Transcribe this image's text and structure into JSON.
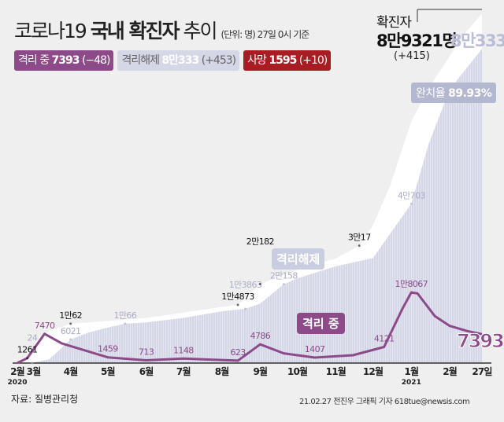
{
  "header": {
    "title_prefix": "코로나19",
    "title_bold": "국내 확진자",
    "title_suffix": "추이",
    "unit_note": "(단위: 명) 27일 0시 기준"
  },
  "badges": {
    "isolation": {
      "label": "격리 중",
      "value": "7393",
      "delta": "(−48)"
    },
    "released": {
      "label": "격리해제",
      "value": "8만333",
      "delta": "(+453)"
    },
    "deaths": {
      "label": "사망",
      "value": "1595",
      "delta": "(+10)"
    }
  },
  "summary": {
    "confirmed_label": "확진자",
    "confirmed_value": "8만9321명",
    "confirmed_delta": "(+415)",
    "released_total": "8만333",
    "recovery_rate_label": "완치율",
    "recovery_rate_value": "89.93%"
  },
  "tags": {
    "released": "격리해제",
    "isolation": "격리 중",
    "isolation_end": "7393"
  },
  "footer": {
    "source": "자료: 질병관리청",
    "credit": "21.02.27 전진우 그래픽 기자 618tue@newsis.com"
  },
  "colors": {
    "isolation": "#8c4a88",
    "released": "#d5d7e6",
    "confirmed": "#ffffff",
    "deaths": "#a81c24",
    "background": "#efefef"
  },
  "chart_data": {
    "type": "area",
    "ylim": [
      0,
      90000
    ],
    "grid": false,
    "x_ticks": [
      {
        "date": "2020-02-18",
        "label": "2월"
      },
      {
        "date": "2020-03-01",
        "label": "3월"
      },
      {
        "date": "2020-04-01",
        "label": "4월"
      },
      {
        "date": "2020-05-01",
        "label": "5월"
      },
      {
        "date": "2020-06-01",
        "label": "6월"
      },
      {
        "date": "2020-07-01",
        "label": "7월"
      },
      {
        "date": "2020-08-01",
        "label": "8월"
      },
      {
        "date": "2020-09-01",
        "label": "9월"
      },
      {
        "date": "2020-10-01",
        "label": "10월"
      },
      {
        "date": "2020-11-01",
        "label": "11월"
      },
      {
        "date": "2020-12-01",
        "label": "12월"
      },
      {
        "date": "2021-01-01",
        "label": "1월"
      },
      {
        "date": "2021-02-01",
        "label": "2월"
      },
      {
        "date": "2021-02-27",
        "label": "27일"
      }
    ],
    "year_labels": [
      {
        "date": "2020-02-18",
        "label": "2020"
      },
      {
        "date": "2021-01-01",
        "label": "2021"
      }
    ],
    "series": [
      {
        "key": "confirmed",
        "points": [
          [
            "2020-02-18",
            31
          ],
          [
            "2020-02-26",
            1261
          ],
          [
            "2020-03-05",
            6000
          ],
          [
            "2020-03-15",
            8162
          ],
          [
            "2020-04-01",
            10062
          ],
          [
            "2020-05-01",
            10774
          ],
          [
            "2020-06-01",
            11541
          ],
          [
            "2020-07-01",
            12904
          ],
          [
            "2020-08-01",
            14336
          ],
          [
            "2020-08-14",
            14873
          ],
          [
            "2020-09-01",
            20182
          ],
          [
            "2020-10-01",
            23889
          ],
          [
            "2020-11-01",
            26732
          ],
          [
            "2020-11-20",
            30017
          ],
          [
            "2020-12-01",
            35163
          ],
          [
            "2020-12-15",
            45442
          ],
          [
            "2021-01-01",
            61769
          ],
          [
            "2021-01-15",
            70212
          ],
          [
            "2021-02-01",
            78508
          ],
          [
            "2021-02-15",
            84946
          ],
          [
            "2021-02-27",
            89321
          ]
        ]
      },
      {
        "key": "released",
        "points": [
          [
            "2020-02-18",
            12
          ],
          [
            "2020-03-01",
            24
          ],
          [
            "2020-03-15",
            1000
          ],
          [
            "2020-04-01",
            6021
          ],
          [
            "2020-04-15",
            7757
          ],
          [
            "2020-05-01",
            9072
          ],
          [
            "2020-05-15",
            10066
          ],
          [
            "2020-06-01",
            10398
          ],
          [
            "2020-07-01",
            11537
          ],
          [
            "2020-08-01",
            13233
          ],
          [
            "2020-08-20",
            13863
          ],
          [
            "2020-09-01",
            15198
          ],
          [
            "2020-09-20",
            20158
          ],
          [
            "2020-10-01",
            21666
          ],
          [
            "2020-11-01",
            24727
          ],
          [
            "2020-12-01",
            26825
          ],
          [
            "2021-01-01",
            40703
          ],
          [
            "2021-01-15",
            56000
          ],
          [
            "2021-02-01",
            70000
          ],
          [
            "2021-02-27",
            80333
          ]
        ]
      },
      {
        "key": "isolation",
        "points": [
          [
            "2020-02-18",
            19
          ],
          [
            "2020-02-26",
            1237
          ],
          [
            "2020-03-11",
            7470
          ],
          [
            "2020-03-25",
            5000
          ],
          [
            "2020-04-15",
            3000
          ],
          [
            "2020-05-01",
            1459
          ],
          [
            "2020-06-01",
            713
          ],
          [
            "2020-07-01",
            1148
          ],
          [
            "2020-08-14",
            623
          ],
          [
            "2020-09-01",
            4786
          ],
          [
            "2020-09-20",
            2500
          ],
          [
            "2020-10-15",
            1407
          ],
          [
            "2020-11-15",
            2000
          ],
          [
            "2020-12-10",
            4121
          ],
          [
            "2020-12-25",
            14000
          ],
          [
            "2021-01-01",
            18067
          ],
          [
            "2021-01-06",
            17800
          ],
          [
            "2021-01-20",
            12000
          ],
          [
            "2021-02-01",
            9500
          ],
          [
            "2021-02-15",
            8200
          ],
          [
            "2021-02-27",
            7393
          ]
        ]
      }
    ],
    "annotations": [
      {
        "series": "confirmed",
        "date": "2020-02-26",
        "value": 1261,
        "text": "1261"
      },
      {
        "series": "released",
        "date": "2020-03-01",
        "value": 24,
        "text": "24"
      },
      {
        "series": "isolation",
        "date": "2020-03-11",
        "value": 7470,
        "text": "7470"
      },
      {
        "series": "confirmed",
        "date": "2020-04-01",
        "value": 10062,
        "text": "1만62"
      },
      {
        "series": "released",
        "date": "2020-04-01",
        "value": 6021,
        "text": "6021"
      },
      {
        "series": "isolation",
        "date": "2020-05-01",
        "value": 1459,
        "text": "1459"
      },
      {
        "series": "released",
        "date": "2020-05-15",
        "value": 10066,
        "text": "1만66"
      },
      {
        "series": "isolation",
        "date": "2020-06-01",
        "value": 713,
        "text": "713"
      },
      {
        "series": "isolation",
        "date": "2020-07-01",
        "value": 1148,
        "text": "1148"
      },
      {
        "series": "isolation",
        "date": "2020-08-14",
        "value": 623,
        "text": "623"
      },
      {
        "series": "confirmed",
        "date": "2020-08-14",
        "value": 14873,
        "text": "1만4873"
      },
      {
        "series": "released",
        "date": "2020-08-20",
        "value": 13863,
        "text": "1만3863"
      },
      {
        "series": "confirmed",
        "date": "2020-09-01",
        "value": 20182,
        "text": "2만182"
      },
      {
        "series": "isolation",
        "date": "2020-09-01",
        "value": 4786,
        "text": "4786"
      },
      {
        "series": "released",
        "date": "2020-09-20",
        "value": 20158,
        "text": "2만158"
      },
      {
        "series": "isolation",
        "date": "2020-10-15",
        "value": 1407,
        "text": "1407"
      },
      {
        "series": "confirmed",
        "date": "2020-11-20",
        "value": 30017,
        "text": "3만17"
      },
      {
        "series": "isolation",
        "date": "2020-12-10",
        "value": 4121,
        "text": "4121"
      },
      {
        "series": "released",
        "date": "2021-01-01",
        "value": 40703,
        "text": "4만703"
      },
      {
        "series": "isolation",
        "date": "2021-01-01",
        "value": 18067,
        "text": "1만8067"
      }
    ]
  }
}
